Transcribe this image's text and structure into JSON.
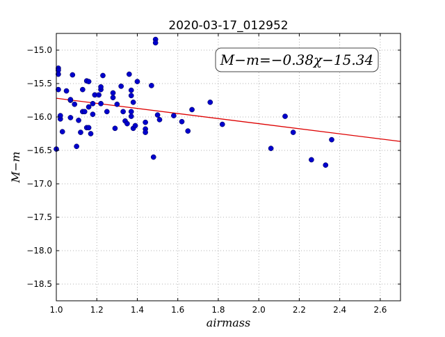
{
  "chart_data": {
    "type": "scatter",
    "title": "2020-03-17_012952",
    "xlabel": "airmass",
    "ylabel": "M−m",
    "xlim": [
      1.0,
      2.7
    ],
    "ylim": [
      -18.75,
      -14.75
    ],
    "y_inverted": true,
    "grid": true,
    "grid_style": "dotted",
    "x_ticks": [
      1.0,
      1.2,
      1.4,
      1.6,
      1.8,
      2.0,
      2.2,
      2.4,
      2.6
    ],
    "x_tick_labels": [
      "1.0",
      "1.2",
      "1.4",
      "1.6",
      "1.8",
      "2.0",
      "2.2",
      "2.4",
      "2.6"
    ],
    "y_ticks": [
      -15.0,
      -15.5,
      -16.0,
      -16.5,
      -17.0,
      -17.5,
      -18.0,
      -18.5
    ],
    "y_tick_labels": [
      "−15.0",
      "−15.5",
      "−16.0",
      "−16.5",
      "−17.0",
      "−17.5",
      "−18.0",
      "−18.5"
    ],
    "annotation": "M−m=−0.38χ−15.34",
    "fit": {
      "slope": -0.38,
      "intercept": -15.34
    },
    "colors": {
      "points": "#0000cc",
      "fit_line": "#dd0000",
      "grid": "#999999"
    },
    "points": [
      [
        1.0,
        -16.48
      ],
      [
        1.01,
        -15.27
      ],
      [
        1.01,
        -15.3
      ],
      [
        1.01,
        -15.36
      ],
      [
        1.01,
        -15.59
      ],
      [
        1.02,
        -16.03
      ],
      [
        1.02,
        -15.98
      ],
      [
        1.03,
        -16.22
      ],
      [
        1.05,
        -15.61
      ],
      [
        1.07,
        -15.75
      ],
      [
        1.08,
        -15.37
      ],
      [
        1.07,
        -15.74
      ],
      [
        1.07,
        -16.01
      ],
      [
        1.09,
        -15.81
      ],
      [
        1.1,
        -16.44
      ],
      [
        1.11,
        -16.05
      ],
      [
        1.12,
        -16.23
      ],
      [
        1.13,
        -15.92
      ],
      [
        1.13,
        -15.59
      ],
      [
        1.14,
        -15.92
      ],
      [
        1.15,
        -15.46
      ],
      [
        1.16,
        -15.47
      ],
      [
        1.15,
        -16.16
      ],
      [
        1.16,
        -16.16
      ],
      [
        1.16,
        -15.85
      ],
      [
        1.17,
        -16.25
      ],
      [
        1.18,
        -15.8
      ],
      [
        1.18,
        -15.96
      ],
      [
        1.19,
        -15.67
      ],
      [
        1.21,
        -15.67
      ],
      [
        1.22,
        -15.59
      ],
      [
        1.22,
        -15.55
      ],
      [
        1.22,
        -15.8
      ],
      [
        1.23,
        -15.38
      ],
      [
        1.25,
        -15.92
      ],
      [
        1.28,
        -15.71
      ],
      [
        1.28,
        -15.64
      ],
      [
        1.29,
        -16.17
      ],
      [
        1.3,
        -15.81
      ],
      [
        1.32,
        -15.54
      ],
      [
        1.33,
        -15.92
      ],
      [
        1.34,
        -16.06
      ],
      [
        1.35,
        -16.1
      ],
      [
        1.36,
        -15.36
      ],
      [
        1.37,
        -15.92
      ],
      [
        1.37,
        -15.6
      ],
      [
        1.37,
        -15.68
      ],
      [
        1.38,
        -15.78
      ],
      [
        1.37,
        -15.99
      ],
      [
        1.38,
        -16.17
      ],
      [
        1.39,
        -16.13
      ],
      [
        1.4,
        -15.47
      ],
      [
        1.44,
        -16.18
      ],
      [
        1.44,
        -16.23
      ],
      [
        1.44,
        -16.08
      ],
      [
        1.47,
        -15.53
      ],
      [
        1.48,
        -16.6
      ],
      [
        1.49,
        -14.84
      ],
      [
        1.49,
        -14.89
      ],
      [
        1.5,
        -15.97
      ],
      [
        1.51,
        -16.04
      ],
      [
        1.58,
        -15.98
      ],
      [
        1.62,
        -16.07
      ],
      [
        1.65,
        -16.21
      ],
      [
        1.67,
        -15.89
      ],
      [
        1.76,
        -15.78
      ],
      [
        1.82,
        -16.11
      ],
      [
        2.06,
        -16.47
      ],
      [
        2.13,
        -15.99
      ],
      [
        2.17,
        -16.23
      ],
      [
        2.26,
        -16.64
      ],
      [
        2.33,
        -16.72
      ],
      [
        2.36,
        -16.34
      ]
    ]
  }
}
